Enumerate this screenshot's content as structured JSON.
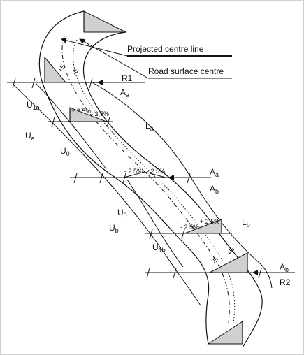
{
  "legend": {
    "projected": "Projected centre line",
    "road": "Road surface centre"
  },
  "labels": {
    "R1": "R1",
    "R2": "R2",
    "Aa_top": "A",
    "Aa_top_sub": "a",
    "Aa_mid": "A",
    "Aa_mid_sub": "a",
    "Ab_mid": "A",
    "Ab_mid_sub": "b",
    "Ab_bot": "A",
    "Ab_bot_sub": "b",
    "U1a": "U",
    "U1a_sub": "1a",
    "Ua": "U",
    "Ua_sub": "a",
    "U0_upper": "U",
    "U0_upper_sub": "0",
    "La": "L",
    "La_sub": "a",
    "U0_lower": "U",
    "U0_lower_sub": "0",
    "Ub": "U",
    "Ub_sub": "b",
    "U1b": "U",
    "U1b_sub": "1b",
    "Lb": "L",
    "Lb_sub": "b"
  },
  "slopes": {
    "a_left": "+ 2.5%",
    "a_right": "- 2.5%",
    "mid_left": "- 2.5%",
    "mid_right": "- 2.5%",
    "b_left": "- 2.5%",
    "b_right": "+ 2.5%",
    "top_left": "+E",
    "top_right": "-E",
    "bot_left": "-E",
    "bot_right": "+E"
  }
}
